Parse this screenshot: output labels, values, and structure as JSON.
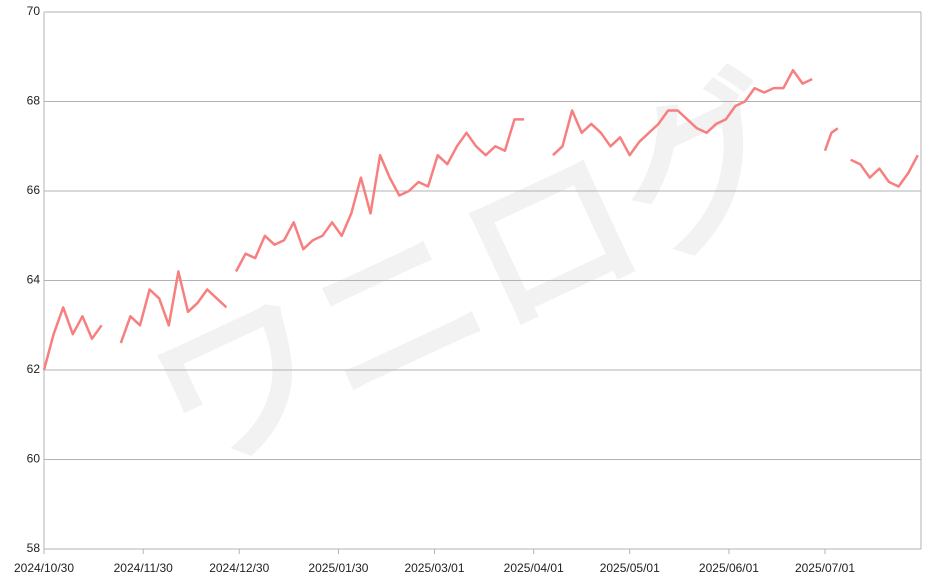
{
  "chart_data": {
    "type": "line",
    "watermark": "ワニログ",
    "x": [
      "2024/10/30",
      "2024/11/02",
      "2024/11/05",
      "2024/11/08",
      "2024/11/11",
      "2024/11/14",
      "2024/11/17",
      "2024/11/20",
      "2024/11/23",
      "2024/11/26",
      "2024/11/29",
      "2024/12/02",
      "2024/12/05",
      "2024/12/08",
      "2024/12/11",
      "2024/12/14",
      "2024/12/17",
      "2024/12/20",
      "2024/12/23",
      "2024/12/26",
      "2024/12/27",
      "2024/12/29",
      "2025/01/01",
      "2025/01/04",
      "2025/01/07",
      "2025/01/10",
      "2025/01/13",
      "2025/01/16",
      "2025/01/19",
      "2025/01/22",
      "2025/01/25",
      "2025/01/28",
      "2025/01/31",
      "2025/02/03",
      "2025/02/06",
      "2025/02/09",
      "2025/02/12",
      "2025/02/15",
      "2025/02/18",
      "2025/02/21",
      "2025/02/24",
      "2025/02/27",
      "2025/03/02",
      "2025/03/05",
      "2025/03/08",
      "2025/03/11",
      "2025/03/14",
      "2025/03/17",
      "2025/03/20",
      "2025/03/23",
      "2025/03/26",
      "2025/03/29",
      "2025/04/01",
      "2025/04/04",
      "2025/04/07",
      "2025/04/10",
      "2025/04/13",
      "2025/04/16",
      "2025/04/19",
      "2025/04/22",
      "2025/04/25",
      "2025/04/28",
      "2025/05/01",
      "2025/05/04",
      "2025/05/07",
      "2025/05/10",
      "2025/05/13",
      "2025/05/16",
      "2025/05/19",
      "2025/05/22",
      "2025/05/25",
      "2025/05/28",
      "2025/05/31",
      "2025/06/03",
      "2025/06/06",
      "2025/06/09",
      "2025/06/12",
      "2025/06/15",
      "2025/06/18",
      "2025/06/21",
      "2025/06/24",
      "2025/06/27",
      "2025/06/30",
      "2025/07/01",
      "2025/07/03",
      "2025/07/05",
      "2025/07/06",
      "2025/07/09",
      "2025/07/12",
      "2025/07/15",
      "2025/07/18",
      "2025/07/21",
      "2025/07/24",
      "2025/07/27",
      "2025/07/30"
    ],
    "series": [
      {
        "color": "#f77f7f",
        "values": [
          62.0,
          62.8,
          63.4,
          62.8,
          63.2,
          62.7,
          63.0,
          null,
          62.6,
          63.2,
          63.0,
          63.8,
          63.6,
          63.0,
          64.2,
          63.3,
          63.5,
          63.8,
          63.6,
          63.4,
          null,
          64.2,
          64.6,
          64.5,
          65.0,
          64.8,
          64.9,
          65.3,
          64.7,
          64.9,
          65.0,
          65.3,
          65.0,
          65.5,
          66.3,
          65.5,
          66.8,
          66.3,
          65.9,
          66.0,
          66.2,
          66.1,
          66.8,
          66.6,
          67.0,
          67.3,
          67.0,
          66.8,
          67.0,
          66.9,
          67.6,
          67.6,
          null,
          null,
          66.8,
          67.0,
          67.8,
          67.3,
          67.5,
          67.3,
          67.0,
          67.2,
          66.8,
          67.1,
          67.3,
          67.5,
          67.8,
          67.8,
          67.6,
          67.4,
          67.3,
          67.5,
          67.6,
          67.9,
          68.0,
          68.3,
          68.2,
          68.3,
          68.3,
          68.7,
          68.4,
          68.5,
          null,
          66.9,
          67.3,
          67.4,
          null,
          66.7,
          66.6,
          66.3,
          66.5,
          66.2,
          66.1,
          66.4,
          66.8
        ]
      }
    ],
    "xlim": [
      "2024/10/30",
      "2025/07/31"
    ],
    "xticks": [
      "2024/10/30",
      "2024/11/30",
      "2024/12/30",
      "2025/01/30",
      "2025/03/01",
      "2025/04/01",
      "2025/05/01",
      "2025/06/01",
      "2025/07/01"
    ],
    "ylim": [
      58,
      70
    ],
    "yticks": [
      58,
      60,
      62,
      64,
      66,
      68,
      70
    ],
    "grid": true
  }
}
